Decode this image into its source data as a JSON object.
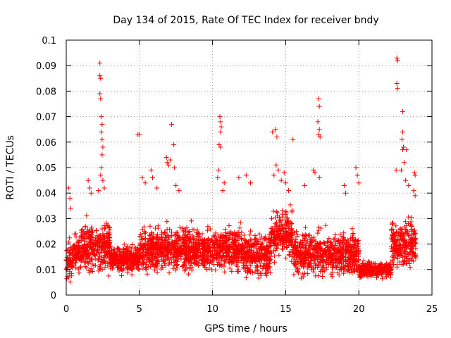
{
  "chart_data": {
    "type": "scatter",
    "title": "Day 134 of 2015, Rate Of TEC Index for receiver bndy",
    "xlabel": "GPS time / hours",
    "ylabel": "ROTI / TECUs",
    "xlim": [
      0,
      25
    ],
    "ylim": [
      0,
      0.1
    ],
    "x_ticks": [
      "0",
      "5",
      "10",
      "15",
      "20",
      "25"
    ],
    "y_ticks": [
      "0",
      "0.01",
      "0.02",
      "0.03",
      "0.04",
      "0.05",
      "0.06",
      "0.07",
      "0.08",
      "0.09",
      "0.1"
    ],
    "x_tick_values": [
      0,
      5,
      10,
      15,
      20,
      25
    ],
    "y_tick_values": [
      0,
      0.01,
      0.02,
      0.03,
      0.04,
      0.05,
      0.06,
      0.07,
      0.08,
      0.09,
      0.1
    ],
    "grid": true,
    "marker": "+",
    "point_color": "#ff0000",
    "series": [
      {
        "points": [
          [
            2.3,
            0.091
          ],
          [
            2.3,
            0.086
          ],
          [
            2.35,
            0.085
          ],
          [
            2.3,
            0.079
          ],
          [
            2.35,
            0.077
          ],
          [
            2.4,
            0.07
          ],
          [
            2.45,
            0.067
          ],
          [
            2.4,
            0.064
          ],
          [
            2.45,
            0.061
          ],
          [
            2.5,
            0.058
          ],
          [
            2.45,
            0.055
          ],
          [
            2.4,
            0.05
          ],
          [
            2.35,
            0.047
          ],
          [
            2.5,
            0.045
          ],
          [
            2.6,
            0.042
          ],
          [
            2.2,
            0.041
          ],
          [
            0.15,
            0.042
          ],
          [
            0.25,
            0.038
          ],
          [
            0.3,
            0.034
          ],
          [
            1.5,
            0.045
          ],
          [
            1.6,
            0.042
          ],
          [
            1.7,
            0.04
          ],
          [
            4.9,
            0.063
          ],
          [
            5.0,
            0.063
          ],
          [
            5.2,
            0.046
          ],
          [
            5.4,
            0.044
          ],
          [
            5.8,
            0.049
          ],
          [
            5.9,
            0.046
          ],
          [
            6.2,
            0.042
          ],
          [
            6.85,
            0.054
          ],
          [
            6.9,
            0.052
          ],
          [
            7.0,
            0.051
          ],
          [
            7.1,
            0.053
          ],
          [
            7.2,
            0.067
          ],
          [
            7.35,
            0.059
          ],
          [
            7.4,
            0.05
          ],
          [
            7.5,
            0.043
          ],
          [
            7.7,
            0.041
          ],
          [
            10.5,
            0.07
          ],
          [
            10.55,
            0.068
          ],
          [
            10.6,
            0.066
          ],
          [
            10.55,
            0.064
          ],
          [
            10.45,
            0.059
          ],
          [
            10.55,
            0.058
          ],
          [
            10.4,
            0.049
          ],
          [
            10.35,
            0.046
          ],
          [
            10.8,
            0.044
          ],
          [
            10.7,
            0.041
          ],
          [
            11.8,
            0.046
          ],
          [
            12.3,
            0.047
          ],
          [
            12.6,
            0.044
          ],
          [
            14.1,
            0.064
          ],
          [
            14.3,
            0.065
          ],
          [
            14.4,
            0.062
          ],
          [
            14.35,
            0.051
          ],
          [
            14.5,
            0.049
          ],
          [
            14.7,
            0.045
          ],
          [
            14.2,
            0.047
          ],
          [
            14.9,
            0.048
          ],
          [
            15.0,
            0.044
          ],
          [
            15.2,
            0.041
          ],
          [
            15.5,
            0.061
          ],
          [
            16.3,
            0.043
          ],
          [
            16.9,
            0.049
          ],
          [
            17.0,
            0.048
          ],
          [
            17.25,
            0.077
          ],
          [
            17.3,
            0.074
          ],
          [
            17.2,
            0.068
          ],
          [
            17.3,
            0.065
          ],
          [
            17.25,
            0.063
          ],
          [
            17.35,
            0.062
          ],
          [
            17.3,
            0.046
          ],
          [
            19.0,
            0.043
          ],
          [
            19.1,
            0.04
          ],
          [
            19.8,
            0.05
          ],
          [
            19.9,
            0.047
          ],
          [
            20.0,
            0.044
          ],
          [
            22.6,
            0.093
          ],
          [
            22.65,
            0.092
          ],
          [
            22.6,
            0.083
          ],
          [
            22.65,
            0.081
          ],
          [
            23.0,
            0.072
          ],
          [
            23.0,
            0.064
          ],
          [
            22.95,
            0.061
          ],
          [
            23.05,
            0.058
          ],
          [
            23.25,
            0.057
          ],
          [
            23.0,
            0.057
          ],
          [
            23.1,
            0.052
          ],
          [
            22.9,
            0.049
          ],
          [
            22.55,
            0.049
          ],
          [
            23.8,
            0.048
          ],
          [
            23.85,
            0.047
          ],
          [
            23.2,
            0.045
          ],
          [
            23.4,
            0.043
          ],
          [
            23.75,
            0.041
          ],
          [
            23.85,
            0.039
          ]
        ]
      }
    ]
  }
}
